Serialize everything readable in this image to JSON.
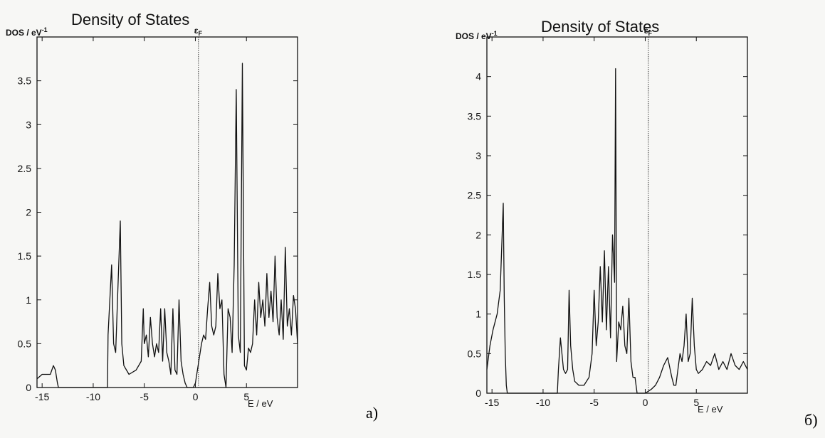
{
  "panels": [
    {
      "letter": "a)"
    },
    {
      "letter": "б)"
    }
  ],
  "chart_data": [
    {
      "type": "line",
      "title": "Density of States",
      "ylabel": "DOS / eV",
      "ylabel_sup": "-1",
      "xlabel": "E / eV",
      "fermi_label": "ε",
      "fermi_sub": "F",
      "fermi_x": 0.3,
      "xlim": [
        -15.5,
        10
      ],
      "ylim": [
        0,
        4
      ],
      "xticks": [
        -15,
        -10,
        -5,
        0,
        5
      ],
      "yticks": [
        0,
        0.5,
        1,
        1.5,
        2,
        2.5,
        3,
        3.5
      ],
      "ytick_labels": [
        "0",
        "0.5",
        "1",
        "1.5",
        "2",
        "2.5",
        "3",
        "3.5"
      ],
      "x": [
        -15.5,
        -15.0,
        -14.2,
        -13.9,
        -13.7,
        -13.5,
        -13.4,
        -8.6,
        -8.55,
        -8.2,
        -8.0,
        -7.8,
        -7.5,
        -7.35,
        -7.2,
        -7.0,
        -6.5,
        -5.8,
        -5.3,
        -5.1,
        -5.0,
        -4.8,
        -4.6,
        -4.4,
        -4.2,
        -4.0,
        -3.8,
        -3.6,
        -3.4,
        -3.2,
        -3.0,
        -2.8,
        -2.6,
        -2.4,
        -2.2,
        -2.0,
        -1.8,
        -1.6,
        -1.4,
        -1.2,
        -1.0,
        -0.8,
        -0.6,
        -0.4,
        -0.2,
        0.0,
        0.6,
        0.8,
        1.0,
        1.2,
        1.4,
        1.6,
        1.8,
        2.0,
        2.2,
        2.4,
        2.6,
        2.8,
        3.0,
        3.2,
        3.4,
        3.6,
        3.8,
        4.0,
        4.2,
        4.4,
        4.6,
        4.8,
        5.0,
        5.2,
        5.4,
        5.6,
        5.8,
        6.0,
        6.2,
        6.4,
        6.6,
        6.8,
        7.0,
        7.2,
        7.4,
        7.6,
        7.8,
        8.0,
        8.2,
        8.4,
        8.6,
        8.8,
        9.0,
        9.2,
        9.4,
        9.6,
        9.8,
        10.0
      ],
      "y": [
        0.1,
        0.15,
        0.15,
        0.25,
        0.2,
        0.05,
        0,
        0,
        0.6,
        1.4,
        0.5,
        0.4,
        1.4,
        1.9,
        0.5,
        0.25,
        0.15,
        0.2,
        0.3,
        0.9,
        0.5,
        0.6,
        0.35,
        0.8,
        0.5,
        0.35,
        0.5,
        0.4,
        0.9,
        0.3,
        0.9,
        0.4,
        0.3,
        0.15,
        0.9,
        0.2,
        0.15,
        1.0,
        0.3,
        0.15,
        0.05,
        0,
        0,
        0,
        0,
        0.05,
        0.5,
        0.6,
        0.55,
        0.9,
        1.2,
        0.7,
        0.6,
        0.7,
        1.3,
        0.9,
        1.0,
        0.15,
        0,
        0.9,
        0.8,
        0.4,
        1.4,
        3.4,
        0.6,
        0.4,
        3.7,
        0.25,
        0.2,
        0.45,
        0.4,
        0.5,
        1.0,
        0.6,
        1.2,
        0.8,
        1.0,
        0.7,
        1.3,
        0.8,
        1.1,
        0.75,
        1.5,
        0.8,
        0.6,
        1.0,
        0.55,
        1.6,
        0.7,
        0.9,
        0.6,
        1.05,
        0.9,
        0.5
      ]
    },
    {
      "type": "line",
      "title": "Density of States",
      "ylabel": "DOS / eV",
      "ylabel_sup": "-1",
      "xlabel": "E / eV",
      "fermi_label": "ε",
      "fermi_sub": "F",
      "fermi_x": 0.3,
      "xlim": [
        -15.5,
        10
      ],
      "ylim": [
        0,
        4.5
      ],
      "xticks": [
        -15,
        -10,
        -5,
        0,
        5
      ],
      "yticks": [
        0,
        0.5,
        1,
        1.5,
        2,
        2.5,
        3,
        3.5,
        4
      ],
      "ytick_labels": [
        "0",
        "0.5",
        "1",
        "1.5",
        "2",
        "2.5",
        "3",
        "3.5",
        "4"
      ],
      "x": [
        -15.5,
        -15.2,
        -14.9,
        -14.5,
        -14.2,
        -13.9,
        -13.8,
        -13.7,
        -13.6,
        -13.5,
        -8.6,
        -8.5,
        -8.3,
        -8.0,
        -7.8,
        -7.6,
        -7.45,
        -7.3,
        -7.1,
        -6.9,
        -6.5,
        -6.0,
        -5.5,
        -5.2,
        -5.0,
        -4.8,
        -4.6,
        -4.4,
        -4.2,
        -4.0,
        -3.8,
        -3.6,
        -3.4,
        -3.2,
        -3.0,
        -2.9,
        -2.8,
        -2.6,
        -2.4,
        -2.2,
        -2.0,
        -1.8,
        -1.6,
        -1.4,
        -1.2,
        -1.0,
        -0.8,
        -0.6,
        -0.4,
        -0.2,
        0.0,
        0.6,
        1.0,
        1.4,
        1.8,
        2.2,
        2.6,
        2.8,
        3.0,
        3.2,
        3.4,
        3.6,
        3.8,
        4.0,
        4.2,
        4.4,
        4.6,
        4.8,
        5.0,
        5.2,
        5.6,
        6.0,
        6.4,
        6.8,
        7.2,
        7.6,
        8.0,
        8.4,
        8.8,
        9.2,
        9.6,
        10.0
      ],
      "y": [
        0.3,
        0.6,
        0.8,
        1.0,
        1.3,
        2.4,
        1.2,
        0.5,
        0.1,
        0,
        0,
        0.3,
        0.7,
        0.3,
        0.25,
        0.3,
        1.3,
        0.6,
        0.3,
        0.15,
        0.1,
        0.1,
        0.2,
        0.5,
        1.3,
        0.6,
        0.9,
        1.6,
        0.9,
        1.8,
        0.8,
        1.6,
        0.7,
        2.0,
        1.4,
        4.1,
        0.4,
        0.9,
        0.8,
        1.1,
        0.6,
        0.5,
        1.2,
        0.4,
        0.2,
        0.2,
        0,
        0,
        0,
        0,
        0,
        0.05,
        0.1,
        0.2,
        0.35,
        0.45,
        0.2,
        0.1,
        0.1,
        0.3,
        0.5,
        0.4,
        0.6,
        1.0,
        0.4,
        0.5,
        1.2,
        0.6,
        0.3,
        0.25,
        0.3,
        0.4,
        0.35,
        0.5,
        0.3,
        0.4,
        0.3,
        0.5,
        0.35,
        0.3,
        0.4,
        0.3
      ]
    }
  ]
}
